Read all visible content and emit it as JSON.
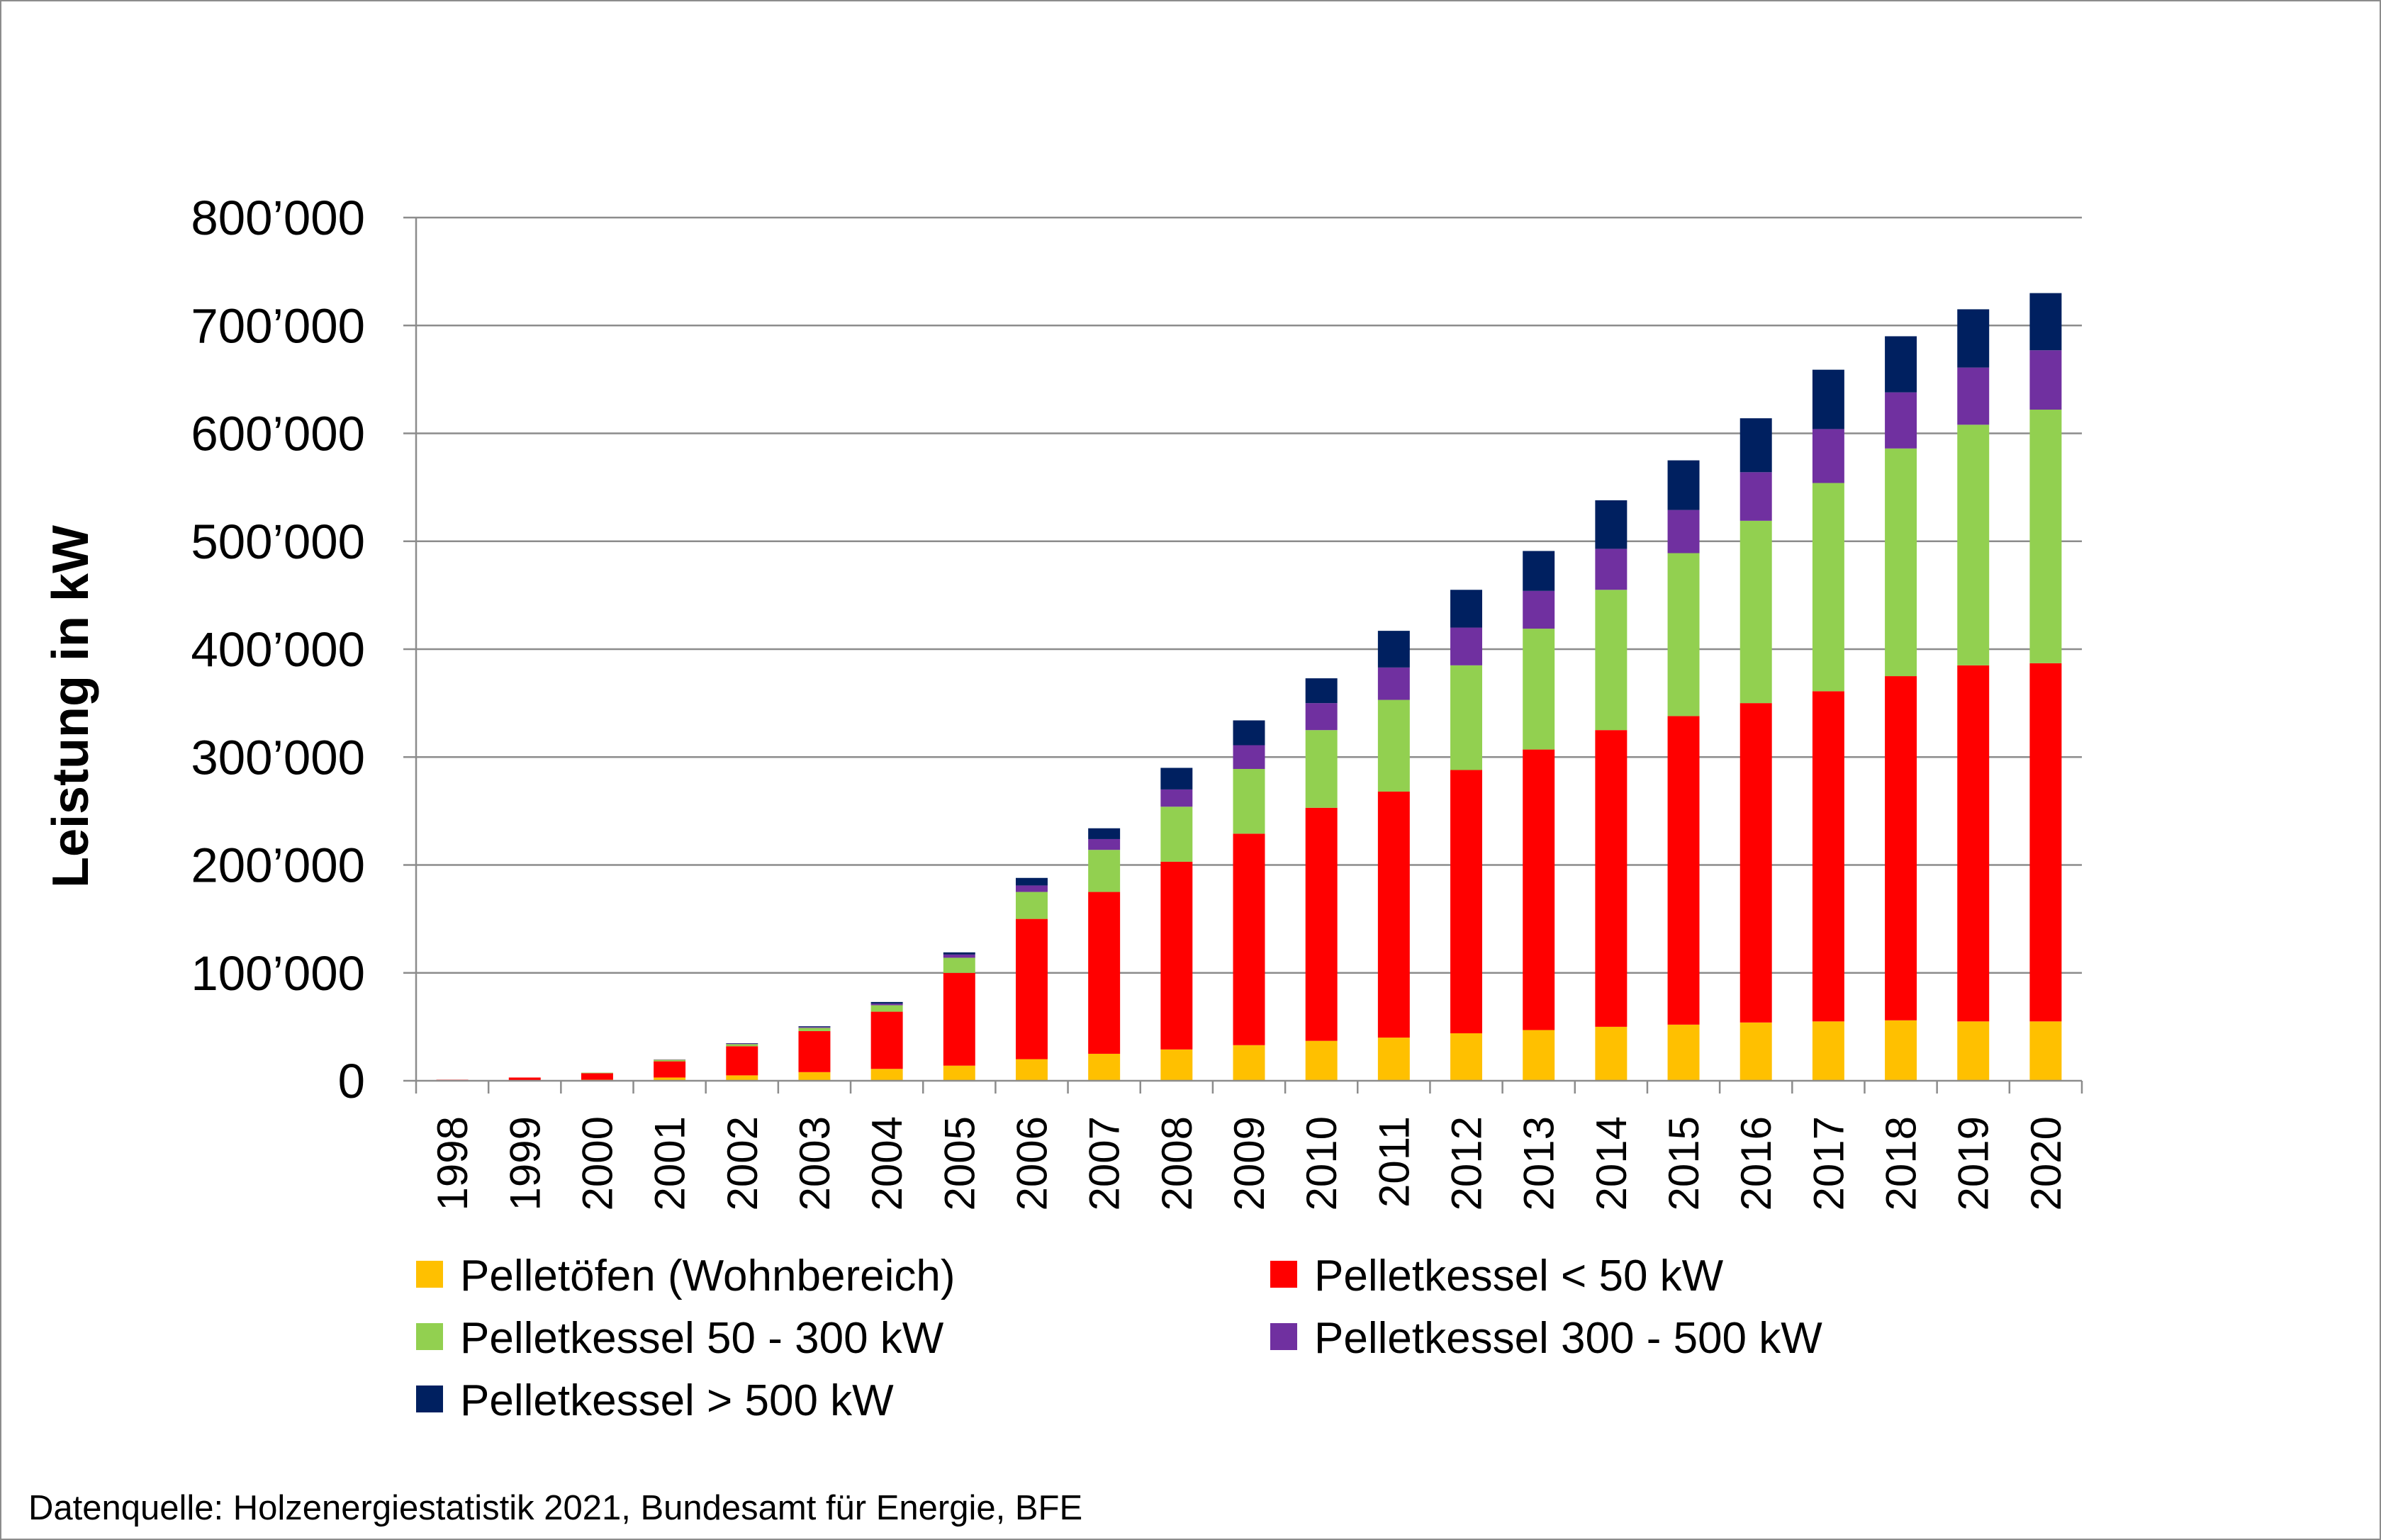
{
  "chart_data": {
    "type": "bar",
    "stacked": true,
    "ylabel": "Leistung in kW",
    "ylim": [
      0,
      800000
    ],
    "ytick_labels": [
      "0",
      "100’000",
      "200’000",
      "300’000",
      "400’000",
      "500’000",
      "600’000",
      "700’000",
      "800’000"
    ],
    "grid": true,
    "legend_position": "bottom",
    "categories": [
      "1998",
      "1999",
      "2000",
      "2001",
      "2002",
      "2003",
      "2004",
      "2005",
      "2006",
      "2007",
      "2008",
      "2009",
      "2010",
      "2011",
      "2012",
      "2013",
      "2014",
      "2015",
      "2016",
      "2017",
      "2018",
      "2019",
      "2020"
    ],
    "series": [
      {
        "name": "Pelletöfen (Wohnbereich)",
        "color": "#FFC000",
        "values": [
          200,
          500,
          1000,
          3000,
          5000,
          8000,
          11000,
          14000,
          20000,
          25000,
          29000,
          33000,
          37000,
          40000,
          44000,
          47000,
          50000,
          52000,
          54000,
          55000,
          56000,
          55000,
          55000
        ]
      },
      {
        "name": "Pelletkessel < 50 kW",
        "color": "#FF0000",
        "values": [
          800,
          2500,
          6000,
          15000,
          27000,
          38000,
          53000,
          86000,
          130000,
          150000,
          174000,
          196000,
          216000,
          228000,
          244000,
          260000,
          275000,
          286000,
          296000,
          306000,
          319000,
          330000,
          332000
        ]
      },
      {
        "name": "Pelletkessel  50 - 300 kW",
        "color": "#92D050",
        "values": [
          0,
          0,
          500,
          1500,
          2000,
          3000,
          6000,
          14000,
          25000,
          39000,
          51000,
          60000,
          72000,
          85000,
          97000,
          112000,
          130000,
          151000,
          169000,
          193000,
          211000,
          223000,
          235000
        ]
      },
      {
        "name": "Pelletkessel 300 - 500 kW",
        "color": "#7030A0",
        "values": [
          0,
          0,
          0,
          300,
          500,
          800,
          1500,
          3000,
          6000,
          10000,
          16000,
          22000,
          25000,
          30000,
          35000,
          35000,
          38000,
          40000,
          45000,
          50000,
          52000,
          53000,
          55000
        ]
      },
      {
        "name": "Pelletkessel > 500 kW",
        "color": "#002060",
        "values": [
          0,
          0,
          0,
          0,
          300,
          700,
          1500,
          2000,
          7000,
          10000,
          20000,
          23000,
          23000,
          34000,
          35000,
          37000,
          45000,
          46000,
          50000,
          55000,
          52000,
          54000,
          53000
        ]
      }
    ]
  },
  "footer": {
    "source": "Datenquelle: Holzenergiestatistik 2021, Bundesamt für Energie, BFE"
  }
}
